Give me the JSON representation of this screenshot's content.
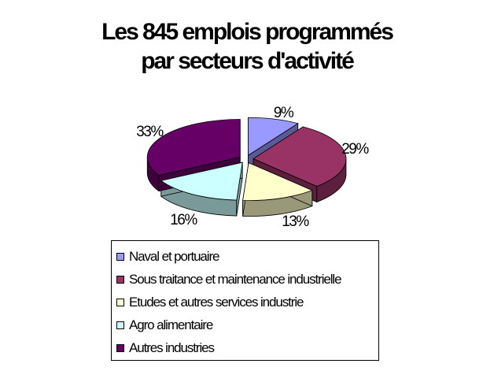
{
  "chart_data": {
    "type": "pie",
    "title": [
      "Les 845 emplois programmés",
      "par secteurs d'activité"
    ],
    "slices": [
      {
        "label": "Naval et portuaire",
        "value": 9,
        "display": "9%",
        "color": "#9999ff",
        "side": "#5a5a96"
      },
      {
        "label": "Sous traitance et maintenance industrielle",
        "value": 29,
        "display": "29%",
        "color": "#993366",
        "side": "#5c1f3d"
      },
      {
        "label": "Etudes et autres services industrie",
        "value": 13,
        "display": "13%",
        "color": "#ffffcc",
        "side": "#99997a"
      },
      {
        "label": "Agro alimentaire",
        "value": 16,
        "display": "16%",
        "color": "#ccffff",
        "side": "#7a9999"
      },
      {
        "label": "Autres industries",
        "value": 33,
        "display": "33%",
        "color": "#660066",
        "side": "#3d003d"
      }
    ],
    "legend_position": "bottom",
    "three_d": true,
    "exploded": true
  }
}
